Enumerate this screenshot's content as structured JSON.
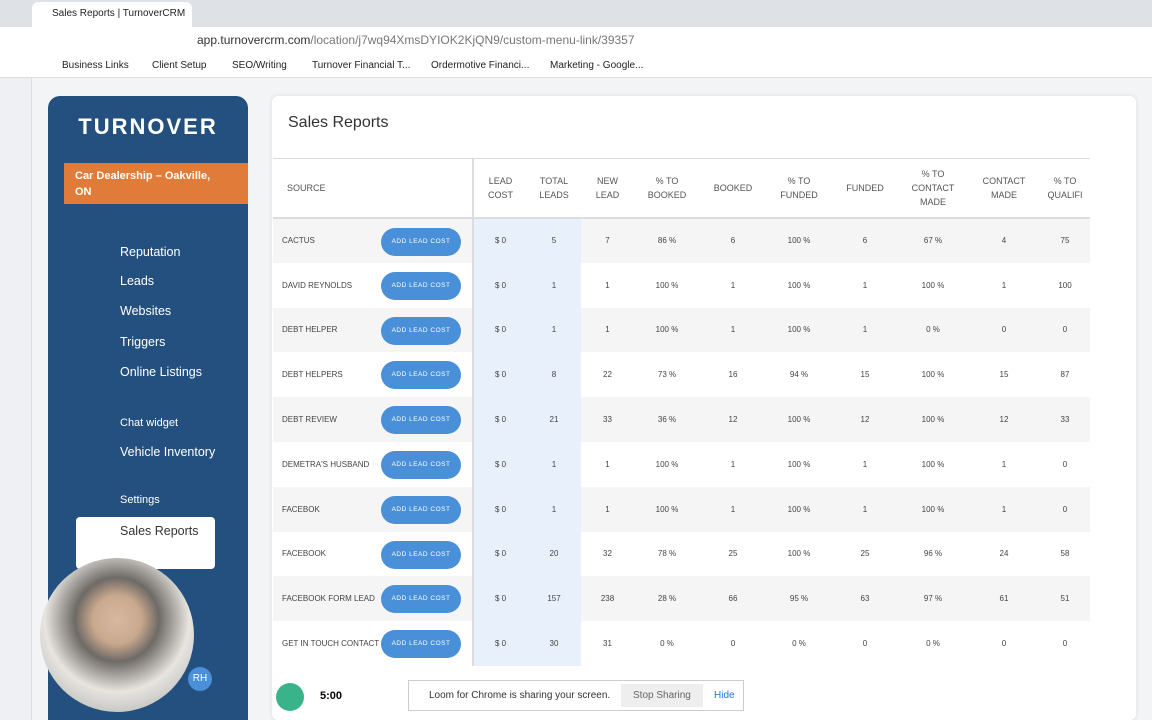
{
  "browser": {
    "tab_title": "Sales Reports | TurnoverCRM",
    "url_domain": "app.turnovercrm.com",
    "url_path": "/location/j7wq94XmsDYIOK2KjQN9/custom-menu-link/39357",
    "bookmarks": [
      "Business Links",
      "Client Setup",
      "SEO/Writing",
      "Turnover Financial T...",
      "Ordermotive Financi...",
      "Marketing - Google..."
    ]
  },
  "sidebar": {
    "brand": "TURNOVER",
    "location": "Car Dealership – Oakville, ON",
    "menu": [
      "Reputation",
      "Leads",
      "Websites",
      "Triggers",
      "Online Listings",
      "Chat widget",
      "Vehicle Inventory",
      "Settings",
      "Sales Reports"
    ]
  },
  "page": {
    "title": "Sales Reports"
  },
  "table": {
    "headers": [
      "SOURCE",
      "LEAD COST",
      "TOTAL LEADS",
      "NEW LEAD",
      "% TO BOOKED",
      "BOOKED",
      "% TO FUNDED",
      "FUNDED",
      "% TO CONTACT MADE",
      "CONTACT MADE",
      "% TO QUALIFI"
    ],
    "button_label": "ADD LEAD COST",
    "rows": [
      [
        "CACTUS",
        "$ 0",
        "5",
        "7",
        "86 %",
        "6",
        "100 %",
        "6",
        "67 %",
        "4",
        "75"
      ],
      [
        "DAVID REYNOLDS",
        "$ 0",
        "1",
        "1",
        "100 %",
        "1",
        "100 %",
        "1",
        "100 %",
        "1",
        "100"
      ],
      [
        "DEBT HELPER",
        "$ 0",
        "1",
        "1",
        "100 %",
        "1",
        "100 %",
        "1",
        "0 %",
        "0",
        "0"
      ],
      [
        "DEBT HELPERS",
        "$ 0",
        "8",
        "22",
        "73 %",
        "16",
        "94 %",
        "15",
        "100 %",
        "15",
        "87"
      ],
      [
        "DEBT REVIEW",
        "$ 0",
        "21",
        "33",
        "36 %",
        "12",
        "100 %",
        "12",
        "100 %",
        "12",
        "33"
      ],
      [
        "DEMETRA'S HUSBAND",
        "$ 0",
        "1",
        "1",
        "100 %",
        "1",
        "100 %",
        "1",
        "100 %",
        "1",
        "0"
      ],
      [
        "FACEBOK",
        "$ 0",
        "1",
        "1",
        "100 %",
        "1",
        "100 %",
        "1",
        "100 %",
        "1",
        "0"
      ],
      [
        "FACEBOOK",
        "$ 0",
        "20",
        "32",
        "78 %",
        "25",
        "100 %",
        "25",
        "96 %",
        "24",
        "58"
      ],
      [
        "FACEBOOK FORM LEAD",
        "$ 0",
        "157",
        "238",
        "28 %",
        "66",
        "95 %",
        "63",
        "97 %",
        "61",
        "51"
      ],
      [
        "GET IN TOUCH CONTACT FORM WEBSITE",
        "$ 0",
        "30",
        "31",
        "0 %",
        "0",
        "0 %",
        "0",
        "0 %",
        "0",
        "0"
      ]
    ]
  },
  "recorder": {
    "timer": "5:00",
    "initials": "RH",
    "notice": "Loom for Chrome is sharing your screen.",
    "stop": "Stop Sharing",
    "hide": "Hide"
  }
}
